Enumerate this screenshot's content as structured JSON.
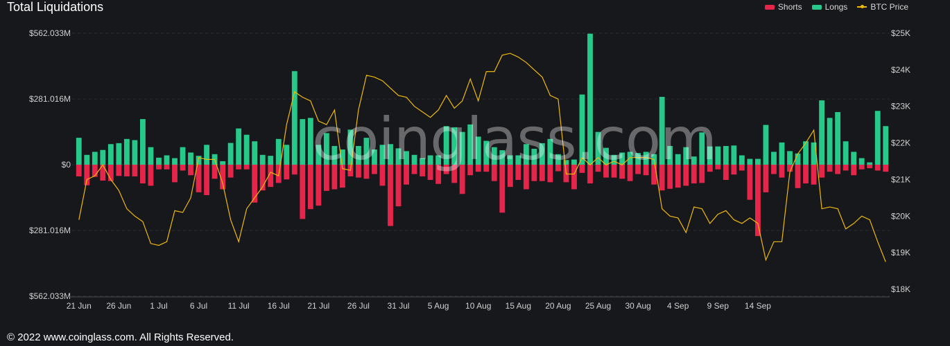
{
  "header": {
    "title": "Total Liquidations"
  },
  "legend": [
    {
      "label": "Shorts",
      "color": "#e6254a",
      "kind": "bar"
    },
    {
      "label": "Longs",
      "color": "#26c98a",
      "kind": "bar"
    },
    {
      "label": "BTC Price",
      "color": "#f0b90b",
      "kind": "line"
    }
  ],
  "watermark": "coinglass.com",
  "footer": {
    "copyright": "© 2022 www.coinglass.com. All Rights Reserved."
  },
  "chart_data": {
    "type": "bar",
    "title": "Total Liquidations",
    "grid": true,
    "legend_position": "top-right",
    "left_axis": {
      "ticks": [
        "$562.033M",
        "$281.016M",
        "$0",
        "$281.016M",
        "$562.033M"
      ],
      "range": [
        -562.033,
        562.033
      ],
      "unit": "$M"
    },
    "right_axis": {
      "ticks": [
        "$25K",
        "$24K",
        "$23K",
        "$22K",
        "$21K",
        "$20K",
        "$19K",
        "$18K"
      ],
      "range": [
        18,
        25
      ],
      "unit": "$K"
    },
    "x_tick_labels": [
      "21 Jun",
      "26 Jun",
      "1 Jul",
      "6 Jul",
      "11 Jul",
      "16 Jul",
      "21 Jul",
      "26 Jul",
      "31 Jul",
      "5 Aug",
      "10 Aug",
      "15 Aug",
      "20 Aug",
      "25 Aug",
      "30 Aug",
      "4 Sep",
      "9 Sep",
      "14 Sep"
    ],
    "x_tick_step_days": 5,
    "series": [
      {
        "name": "Longs",
        "color": "#26c98a",
        "values": [
          115,
          42,
          55,
          63,
          88,
          92,
          110,
          105,
          195,
          75,
          30,
          40,
          28,
          75,
          52,
          38,
          85,
          45,
          15,
          93,
          155,
          128,
          100,
          42,
          38,
          110,
          85,
          400,
          195,
          200,
          85,
          135,
          80,
          65,
          150,
          80,
          115,
          65,
          85,
          88,
          70,
          58,
          42,
          28,
          40,
          40,
          165,
          160,
          140,
          172,
          120,
          102,
          75,
          62,
          40,
          40,
          88,
          68,
          92,
          110,
          45,
          20,
          22,
          300,
          560,
          140,
          72,
          42,
          52,
          55,
          50,
          55,
          45,
          290,
          80,
          45,
          75,
          35,
          138,
          78,
          78,
          80,
          82,
          40,
          25,
          25,
          170,
          55,
          95,
          58,
          48,
          100,
          95,
          275,
          200,
          225,
          100,
          55,
          28,
          10,
          230,
          165
        ]
      },
      {
        "name": "Shorts",
        "color": "#e6254a",
        "values": [
          50,
          88,
          52,
          68,
          70,
          48,
          50,
          50,
          80,
          90,
          20,
          20,
          75,
          25,
          45,
          118,
          130,
          60,
          105,
          55,
          20,
          20,
          162,
          110,
          95,
          78,
          63,
          42,
          232,
          190,
          175,
          112,
          105,
          98,
          50,
          55,
          60,
          40,
          90,
          262,
          178,
          85,
          40,
          50,
          65,
          82,
          40,
          78,
          125,
          45,
          30,
          30,
          70,
          205,
          95,
          65,
          105,
          70,
          70,
          75,
          28,
          75,
          105,
          35,
          80,
          30,
          55,
          55,
          60,
          70,
          40,
          45,
          85,
          110,
          103,
          98,
          90,
          80,
          78,
          30,
          20,
          65,
          42,
          25,
          150,
          305,
          118,
          40,
          55,
          30,
          100,
          80,
          85,
          55,
          30,
          40,
          25,
          45,
          20,
          15,
          25,
          30
        ]
      },
      {
        "name": "BTC Price",
        "color": "#f0b90b",
        "values": [
          19.9,
          21.0,
          21.1,
          21.4,
          21.0,
          20.7,
          20.2,
          20.0,
          19.85,
          19.25,
          19.2,
          19.3,
          20.15,
          20.1,
          20.5,
          21.6,
          21.55,
          21.55,
          20.9,
          19.9,
          19.3,
          20.2,
          20.5,
          20.8,
          21.2,
          21.1,
          22.5,
          23.4,
          23.25,
          23.15,
          22.6,
          22.5,
          22.9,
          21.3,
          21.25,
          22.9,
          23.85,
          23.8,
          23.7,
          23.5,
          23.3,
          23.25,
          23.0,
          22.85,
          22.7,
          22.9,
          23.3,
          22.95,
          23.15,
          23.75,
          23.15,
          23.95,
          23.95,
          24.4,
          24.45,
          24.35,
          24.2,
          24.0,
          23.8,
          23.3,
          23.2,
          21.15,
          21.15,
          21.6,
          21.4,
          21.6,
          21.4,
          21.5,
          21.4,
          21.6,
          21.6,
          21.6,
          21.55,
          20.2,
          20.0,
          19.95,
          19.55,
          20.25,
          20.2,
          19.8,
          20.05,
          20.15,
          19.9,
          19.8,
          19.95,
          19.8,
          18.8,
          19.3,
          19.3,
          21.2,
          21.7,
          22.0,
          22.35,
          20.2,
          20.25,
          20.2,
          19.65,
          19.8,
          20.0,
          19.9,
          19.3,
          18.75
        ]
      }
    ]
  }
}
